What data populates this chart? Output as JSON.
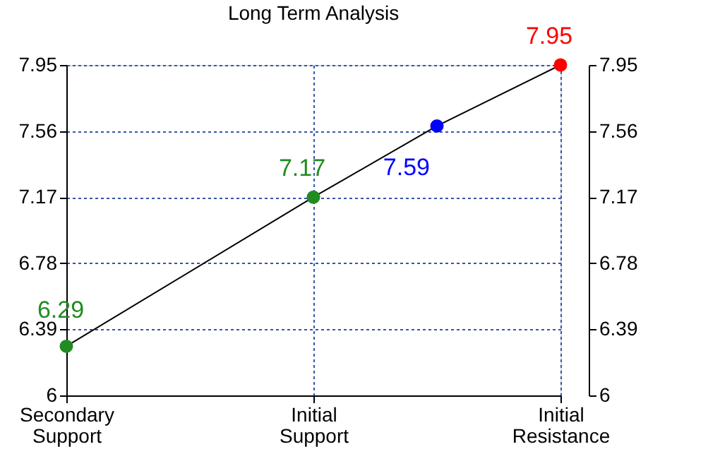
{
  "chart_data": {
    "type": "line",
    "title": "Long Term Analysis",
    "categories": [
      "Secondary Support",
      null,
      "Initial Support",
      null,
      "Initial Resistance"
    ],
    "ylim": [
      6,
      7.95
    ],
    "yticks": [
      6,
      6.39,
      6.78,
      7.17,
      7.56,
      7.95
    ],
    "y2lim": [
      6,
      7.95
    ],
    "y2ticks": [
      6,
      6.39,
      6.78,
      7.17,
      7.56,
      7.95
    ],
    "series": [
      {
        "color": "#000000",
        "colors": [
          "#228b22",
          null,
          "#228b22",
          "#0000ff",
          "#ff0000"
        ],
        "values": [
          6.29,
          null,
          7.17,
          7.59,
          7.95
        ]
      }
    ],
    "data_labels": true,
    "grid": true,
    "legend": false,
    "marker": "circle"
  }
}
